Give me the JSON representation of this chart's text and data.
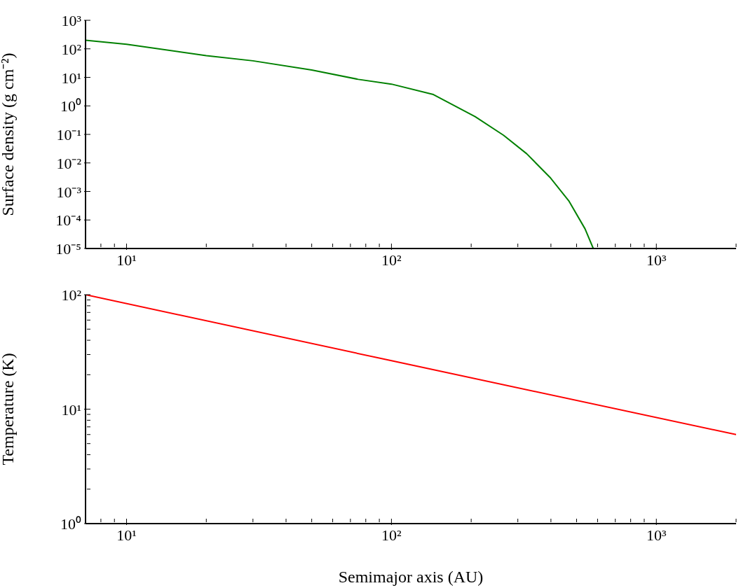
{
  "chart_data": [
    {
      "type": "line",
      "ylabel": "Surface density (g cm⁻²)",
      "log": "xy",
      "grid": false,
      "legend": false,
      "marker": "none",
      "line_style": "solid",
      "series": [
        {
          "color": "#008000",
          "x": [
            7,
            10,
            20,
            30,
            50,
            75,
            100,
            144,
            207,
            265,
            324,
            397,
            467,
            538,
            578
          ],
          "values": [
            200,
            144,
            58,
            38,
            18,
            8.5,
            5.8,
            2.5,
            0.42,
            0.093,
            0.021,
            0.0031,
            0.00047,
            4.9e-05,
            1e-05
          ]
        }
      ],
      "xlim": [
        7,
        2000
      ],
      "ylim": [
        1e-05,
        1000
      ],
      "xticks": [
        {
          "value": 8,
          "label": null
        },
        {
          "value": 9,
          "label": null
        },
        {
          "value": 10,
          "label": "10¹"
        },
        {
          "value": 20,
          "label": null
        },
        {
          "value": 30,
          "label": null
        },
        {
          "value": 40,
          "label": null
        },
        {
          "value": 50,
          "label": null
        },
        {
          "value": 60,
          "label": null
        },
        {
          "value": 70,
          "label": null
        },
        {
          "value": 80,
          "label": null
        },
        {
          "value": 90,
          "label": null
        },
        {
          "value": 100,
          "label": "10²"
        },
        {
          "value": 200,
          "label": null
        },
        {
          "value": 300,
          "label": null
        },
        {
          "value": 400,
          "label": null
        },
        {
          "value": 500,
          "label": null
        },
        {
          "value": 600,
          "label": null
        },
        {
          "value": 700,
          "label": null
        },
        {
          "value": 800,
          "label": null
        },
        {
          "value": 900,
          "label": null
        },
        {
          "value": 1000,
          "label": "10³"
        },
        {
          "value": 2000,
          "label": null
        }
      ],
      "yticks": [
        {
          "value": 1e-05,
          "label": "10⁻⁵"
        },
        {
          "value": 0.0001,
          "label": "10⁻⁴"
        },
        {
          "value": 0.001,
          "label": "10⁻³"
        },
        {
          "value": 0.01,
          "label": "10⁻²"
        },
        {
          "value": 0.1,
          "label": "10⁻¹"
        },
        {
          "value": 1,
          "label": "10⁰"
        },
        {
          "value": 10,
          "label": "10¹"
        },
        {
          "value": 100,
          "label": "10²"
        },
        {
          "value": 1000,
          "label": "10³"
        }
      ]
    },
    {
      "type": "line",
      "xlabel": "Semimajor axis (AU)",
      "ylabel": "Temperature (K)",
      "log": "xy",
      "grid": false,
      "legend": false,
      "marker": "none",
      "line_style": "solid",
      "series": [
        {
          "color": "#ff0000",
          "x": [
            7,
            100,
            2000
          ],
          "values": [
            100,
            26.5,
            6
          ]
        }
      ],
      "xlim": [
        7,
        2000
      ],
      "ylim": [
        1,
        100
      ],
      "xticks": [
        {
          "value": 8,
          "label": null
        },
        {
          "value": 9,
          "label": null
        },
        {
          "value": 10,
          "label": "10¹"
        },
        {
          "value": 20,
          "label": null
        },
        {
          "value": 30,
          "label": null
        },
        {
          "value": 40,
          "label": null
        },
        {
          "value": 50,
          "label": null
        },
        {
          "value": 60,
          "label": null
        },
        {
          "value": 70,
          "label": null
        },
        {
          "value": 80,
          "label": null
        },
        {
          "value": 90,
          "label": null
        },
        {
          "value": 100,
          "label": "10²"
        },
        {
          "value": 200,
          "label": null
        },
        {
          "value": 300,
          "label": null
        },
        {
          "value": 400,
          "label": null
        },
        {
          "value": 500,
          "label": null
        },
        {
          "value": 600,
          "label": null
        },
        {
          "value": 700,
          "label": null
        },
        {
          "value": 800,
          "label": null
        },
        {
          "value": 900,
          "label": null
        },
        {
          "value": 1000,
          "label": "10³"
        },
        {
          "value": 2000,
          "label": null
        }
      ],
      "yticks": [
        {
          "value": 1,
          "label": "10⁰"
        },
        {
          "value": 2,
          "label": null
        },
        {
          "value": 3,
          "label": null
        },
        {
          "value": 4,
          "label": null
        },
        {
          "value": 5,
          "label": null
        },
        {
          "value": 6,
          "label": null
        },
        {
          "value": 7,
          "label": null
        },
        {
          "value": 8,
          "label": null
        },
        {
          "value": 9,
          "label": null
        },
        {
          "value": 10,
          "label": "10¹"
        },
        {
          "value": 20,
          "label": null
        },
        {
          "value": 30,
          "label": null
        },
        {
          "value": 40,
          "label": null
        },
        {
          "value": 50,
          "label": null
        },
        {
          "value": 60,
          "label": null
        },
        {
          "value": 70,
          "label": null
        },
        {
          "value": 80,
          "label": null
        },
        {
          "value": 90,
          "label": null
        },
        {
          "value": 100,
          "label": "10²"
        }
      ]
    }
  ]
}
